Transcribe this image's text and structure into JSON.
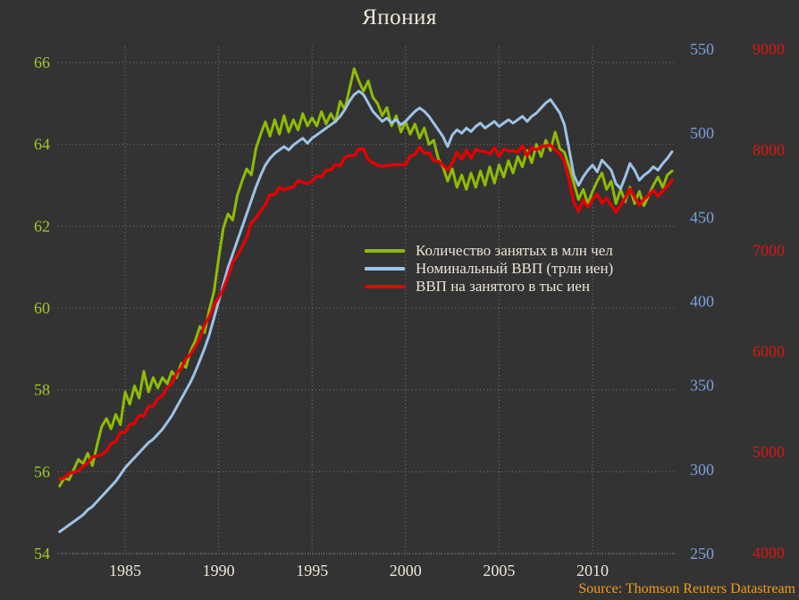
{
  "title": "Япония",
  "source": "Source: Thomson Reuters Datastream",
  "colors": {
    "background": "#333333",
    "grid": "#8f8f8f",
    "title_text": "#f0ebdd",
    "x_tick_text": "#ece6d7",
    "left_tick_text": "#a0c828",
    "right_inner_tick_text": "#78a2d8",
    "right_outer_tick_text": "#da1710",
    "legend_text": "#eae4d5",
    "source_text": "#f29c1d"
  },
  "chart_data": {
    "type": "line",
    "title": "Япония",
    "grid": true,
    "legend_position": "center",
    "x_start": 1981.5,
    "x_step": 0.25,
    "x_ticks": [
      1985,
      1990,
      1995,
      2000,
      2005,
      2010
    ],
    "axes": {
      "left": {
        "side": "left",
        "min": 54,
        "max": 66,
        "ticks": [
          66,
          64,
          62,
          60,
          58,
          56,
          54
        ]
      },
      "right_inner": {
        "side": "right-inner",
        "min": 250,
        "max": 550,
        "ticks": [
          550,
          500,
          450,
          400,
          350,
          300,
          250
        ]
      },
      "right_outer": {
        "side": "right-outer",
        "min": 4000,
        "max": 9000,
        "ticks": [
          9000,
          8000,
          7000,
          6000,
          5000,
          4000
        ]
      }
    },
    "series": [
      {
        "name": "Количество занятых в млн чел",
        "axis": "left",
        "color": "#8fbc04",
        "width": 3,
        "values": [
          55.65,
          55.85,
          55.8,
          56.05,
          56.3,
          56.2,
          56.45,
          56.15,
          56.65,
          57.1,
          57.3,
          57.05,
          57.4,
          57.15,
          57.95,
          57.65,
          58.1,
          57.8,
          58.45,
          57.95,
          58.3,
          58.05,
          58.3,
          58.15,
          58.45,
          58.3,
          58.65,
          58.55,
          58.95,
          59.2,
          59.55,
          59.4,
          59.95,
          60.4,
          61.2,
          61.95,
          62.3,
          62.15,
          62.75,
          63.1,
          63.4,
          63.25,
          63.9,
          64.25,
          64.55,
          64.2,
          64.6,
          64.25,
          64.7,
          64.3,
          64.6,
          64.35,
          64.75,
          64.45,
          64.65,
          64.45,
          64.8,
          64.5,
          64.75,
          64.55,
          65.05,
          64.85,
          65.35,
          65.85,
          65.55,
          65.3,
          65.55,
          65.15,
          65.0,
          64.7,
          64.9,
          64.45,
          64.7,
          64.3,
          64.55,
          64.25,
          64.5,
          64.15,
          64.4,
          64.0,
          64.1,
          63.65,
          63.45,
          63.1,
          63.4,
          62.95,
          63.25,
          62.9,
          63.3,
          62.95,
          63.35,
          63.0,
          63.45,
          63.05,
          63.5,
          63.2,
          63.6,
          63.3,
          63.7,
          63.45,
          63.85,
          63.55,
          64.0,
          63.7,
          64.1,
          63.85,
          64.3,
          63.9,
          63.8,
          63.45,
          63.05,
          62.65,
          62.9,
          62.55,
          62.85,
          63.1,
          63.3,
          62.9,
          63.1,
          62.55,
          62.9,
          62.6,
          62.95,
          62.55,
          62.85,
          62.5,
          62.75,
          63.0,
          63.2,
          62.95,
          63.25,
          63.35
        ]
      },
      {
        "name": "Номинальный ВВП (трлн иен)",
        "axis": "right_inner",
        "color": "#9cc3e8",
        "width": 3,
        "values": [
          263,
          265,
          267,
          269,
          271,
          273,
          276,
          278,
          281,
          284,
          287,
          290,
          293,
          297,
          301,
          304,
          307,
          310,
          313,
          316,
          318,
          321,
          324,
          328,
          332,
          337,
          342,
          347,
          352,
          358,
          365,
          372,
          380,
          390,
          400,
          410,
          420,
          428,
          436,
          444,
          452,
          460,
          468,
          475,
          481,
          485,
          488,
          490,
          492,
          490,
          493,
          495,
          497,
          494,
          497,
          499,
          501,
          503,
          505,
          507,
          510,
          514,
          519,
          523,
          525,
          523,
          518,
          513,
          510,
          507,
          509,
          506,
          508,
          505,
          507,
          510,
          513,
          515,
          513,
          510,
          506,
          502,
          498,
          492,
          499,
          502,
          500,
          503,
          501,
          504,
          506,
          503,
          505,
          507,
          504,
          506,
          508,
          506,
          508,
          510,
          507,
          510,
          512,
          515,
          518,
          520,
          516,
          512,
          505,
          490,
          475,
          469,
          474,
          478,
          481,
          477,
          484,
          481,
          478,
          470,
          467,
          474,
          482,
          478,
          472,
          475,
          477,
          480,
          478,
          482,
          485,
          489
        ]
      },
      {
        "name": "ВВП на занятого в тыс иен",
        "axis": "right_outer",
        "color": "#e60000",
        "width": 3.4,
        "values": [
          4726,
          4745,
          4785,
          4799,
          4813,
          4858,
          4889,
          4951,
          4960,
          4974,
          5009,
          5083,
          5105,
          5197,
          5194,
          5273,
          5284,
          5363,
          5355,
          5453,
          5455,
          5530,
          5558,
          5641,
          5680,
          5781,
          5831,
          5927,
          5971,
          6047,
          6129,
          6263,
          6339,
          6457,
          6536,
          6618,
          6742,
          6887,
          6948,
          7037,
          7129,
          7273,
          7324,
          7393,
          7452,
          7555,
          7554,
          7626,
          7604,
          7621,
          7632,
          7692,
          7676,
          7665,
          7688,
          7742,
          7731,
          7798,
          7799,
          7854,
          7840,
          7926,
          7942,
          7942,
          8009,
          8009,
          7902,
          7874,
          7846,
          7836,
          7843,
          7851,
          7852,
          7854,
          7854,
          7938,
          7953,
          8028,
          7966,
          7969,
          7894,
          7887,
          7849,
          7797,
          7871,
          7975,
          7905,
          7997,
          7915,
          8006,
          7987,
          7984,
          7959,
          8020,
          7937,
          8006,
          7987,
          7994,
          7975,
          8038,
          7940,
          8025,
          8000,
          8030,
          8040,
          8045,
          8000,
          7960,
          7880,
          7700,
          7480,
          7390,
          7500,
          7430,
          7510,
          7560,
          7470,
          7520,
          7450,
          7380,
          7450,
          7520,
          7610,
          7530,
          7450,
          7510,
          7550,
          7600,
          7540,
          7590,
          7640,
          7700
        ]
      }
    ]
  }
}
